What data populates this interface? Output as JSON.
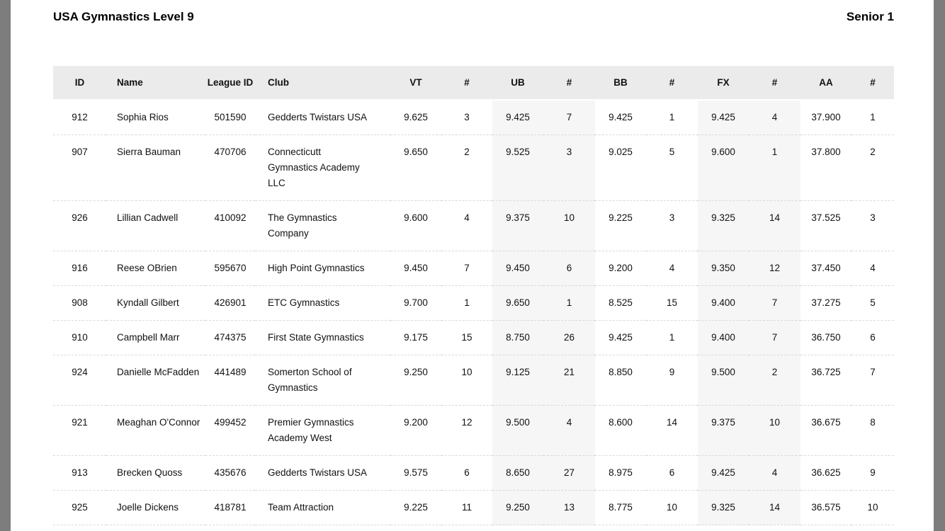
{
  "header": {
    "title": "USA Gymnastics Level 9",
    "division": "Senior 1"
  },
  "colors": {
    "gutter": "#7d7d7d",
    "page_background": "#ffffff",
    "table_header_bg": "#ebebeb",
    "shaded_band_bg": "#f6f6f6",
    "row_divider": "#d9d9d9",
    "text": "#111111"
  },
  "table": {
    "columns": [
      {
        "key": "id",
        "label": "ID"
      },
      {
        "key": "name",
        "label": "Name"
      },
      {
        "key": "league_id",
        "label": "League ID"
      },
      {
        "key": "club",
        "label": "Club"
      },
      {
        "key": "vt",
        "label": "VT"
      },
      {
        "key": "vt_rank",
        "label": "#"
      },
      {
        "key": "ub",
        "label": "UB"
      },
      {
        "key": "ub_rank",
        "label": "#"
      },
      {
        "key": "bb",
        "label": "BB"
      },
      {
        "key": "bb_rank",
        "label": "#"
      },
      {
        "key": "fx",
        "label": "FX"
      },
      {
        "key": "fx_rank",
        "label": "#"
      },
      {
        "key": "aa",
        "label": "AA"
      },
      {
        "key": "aa_rank",
        "label": "#"
      }
    ],
    "rows": [
      {
        "id": "912",
        "name": "Sophia Rios",
        "league_id": "501590",
        "club": "Gedderts Twistars USA",
        "vt": "9.625",
        "vt_rank": "3",
        "ub": "9.425",
        "ub_rank": "7",
        "bb": "9.425",
        "bb_rank": "1",
        "fx": "9.425",
        "fx_rank": "4",
        "aa": "37.900",
        "aa_rank": "1"
      },
      {
        "id": "907",
        "name": "Sierra Bauman",
        "league_id": "470706",
        "club": "Connecticutt Gymnastics Academy LLC",
        "vt": "9.650",
        "vt_rank": "2",
        "ub": "9.525",
        "ub_rank": "3",
        "bb": "9.025",
        "bb_rank": "5",
        "fx": "9.600",
        "fx_rank": "1",
        "aa": "37.800",
        "aa_rank": "2"
      },
      {
        "id": "926",
        "name": "Lillian Cadwell",
        "league_id": "410092",
        "club": "The Gymnastics Company",
        "vt": "9.600",
        "vt_rank": "4",
        "ub": "9.375",
        "ub_rank": "10",
        "bb": "9.225",
        "bb_rank": "3",
        "fx": "9.325",
        "fx_rank": "14",
        "aa": "37.525",
        "aa_rank": "3"
      },
      {
        "id": "916",
        "name": "Reese OBrien",
        "league_id": "595670",
        "club": "High Point Gymnastics",
        "vt": "9.450",
        "vt_rank": "7",
        "ub": "9.450",
        "ub_rank": "6",
        "bb": "9.200",
        "bb_rank": "4",
        "fx": "9.350",
        "fx_rank": "12",
        "aa": "37.450",
        "aa_rank": "4"
      },
      {
        "id": "908",
        "name": "Kyndall Gilbert",
        "league_id": "426901",
        "club": "ETC Gymnastics",
        "vt": "9.700",
        "vt_rank": "1",
        "ub": "9.650",
        "ub_rank": "1",
        "bb": "8.525",
        "bb_rank": "15",
        "fx": "9.400",
        "fx_rank": "7",
        "aa": "37.275",
        "aa_rank": "5"
      },
      {
        "id": "910",
        "name": "Campbell Marr",
        "league_id": "474375",
        "club": "First State Gymnastics",
        "vt": "9.175",
        "vt_rank": "15",
        "ub": "8.750",
        "ub_rank": "26",
        "bb": "9.425",
        "bb_rank": "1",
        "fx": "9.400",
        "fx_rank": "7",
        "aa": "36.750",
        "aa_rank": "6"
      },
      {
        "id": "924",
        "name": "Danielle McFadden",
        "league_id": "441489",
        "club": "Somerton School of Gymnastics",
        "vt": "9.250",
        "vt_rank": "10",
        "ub": "9.125",
        "ub_rank": "21",
        "bb": "8.850",
        "bb_rank": "9",
        "fx": "9.500",
        "fx_rank": "2",
        "aa": "36.725",
        "aa_rank": "7"
      },
      {
        "id": "921",
        "name": "Meaghan O'Connor",
        "league_id": "499452",
        "club": "Premier Gymnastics Academy West",
        "vt": "9.200",
        "vt_rank": "12",
        "ub": "9.500",
        "ub_rank": "4",
        "bb": "8.600",
        "bb_rank": "14",
        "fx": "9.375",
        "fx_rank": "10",
        "aa": "36.675",
        "aa_rank": "8"
      },
      {
        "id": "913",
        "name": "Brecken Quoss",
        "league_id": "435676",
        "club": "Gedderts Twistars USA",
        "vt": "9.575",
        "vt_rank": "6",
        "ub": "8.650",
        "ub_rank": "27",
        "bb": "8.975",
        "bb_rank": "6",
        "fx": "9.425",
        "fx_rank": "4",
        "aa": "36.625",
        "aa_rank": "9"
      },
      {
        "id": "925",
        "name": "Joelle Dickens",
        "league_id": "418781",
        "club": "Team Attraction",
        "vt": "9.225",
        "vt_rank": "11",
        "ub": "9.250",
        "ub_rank": "13",
        "bb": "8.775",
        "bb_rank": "10",
        "fx": "9.325",
        "fx_rank": "14",
        "aa": "36.575",
        "aa_rank": "10"
      }
    ]
  }
}
